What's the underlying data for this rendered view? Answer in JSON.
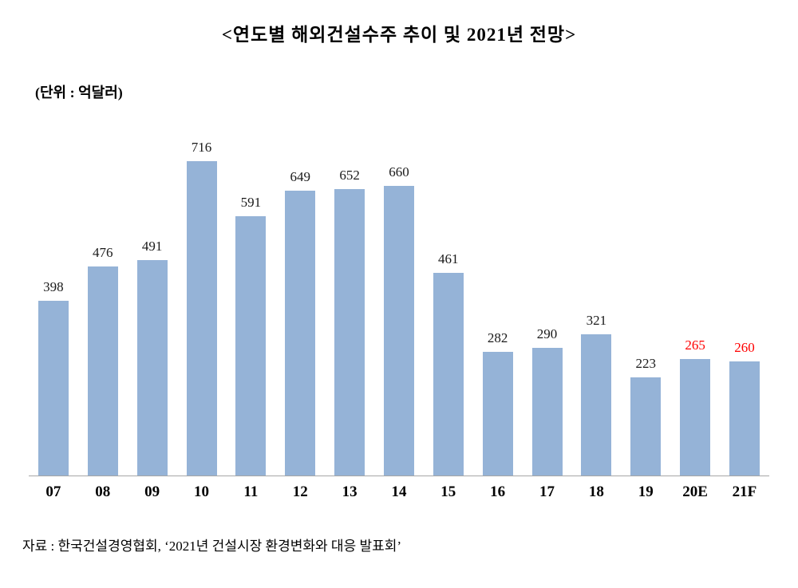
{
  "chart_data": {
    "type": "bar",
    "title": "<연도별 해외건설수주 추이 및 2021년 전망>",
    "unit_label": "(단위 : 억달러)",
    "categories": [
      "07",
      "08",
      "09",
      "10",
      "11",
      "12",
      "13",
      "14",
      "15",
      "16",
      "17",
      "18",
      "19",
      "20E",
      "21F"
    ],
    "values": [
      398,
      476,
      491,
      716,
      591,
      649,
      652,
      660,
      461,
      282,
      290,
      321,
      223,
      265,
      260
    ],
    "highlight_indices": [
      13,
      14
    ],
    "highlight_label_color": "#ff0000",
    "bar_color": "#95b3d7",
    "axis_color": "#a6a6a6",
    "ylim": [
      0,
      750
    ],
    "grid": false,
    "legend": "none",
    "xlabel": "",
    "ylabel": "(단위 : 억달러)"
  },
  "source": "자료 : 한국건설경영협회, ‘2021년 건설시장 환경변화와 대응 발표회’"
}
